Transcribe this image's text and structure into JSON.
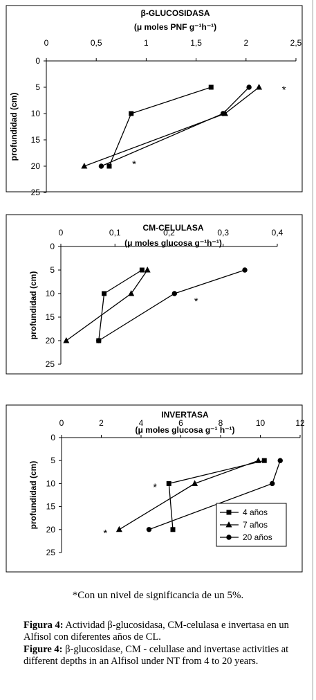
{
  "chart_data": [
    {
      "type": "line",
      "title": "β-GLUCOSIDASA",
      "subtitle": "(μ moles PNF g⁻¹h⁻¹)",
      "ylabel": "profundidad (cm)",
      "xlim": [
        0,
        2.5
      ],
      "ylim": [
        0,
        25
      ],
      "x_ticks": [
        "0",
        "0,5",
        "1",
        "1,5",
        "2",
        "2,5"
      ],
      "y_ticks": [
        "0",
        "5",
        "10",
        "15",
        "20",
        "25"
      ],
      "x_axis_position": "top",
      "y_inverted": true,
      "grid": false,
      "series": [
        {
          "name": "4 años",
          "marker": "square",
          "x": [
            1.65,
            0.85,
            0.63
          ],
          "y": [
            5,
            10,
            20
          ]
        },
        {
          "name": "7 años",
          "marker": "triangle",
          "x": [
            2.13,
            1.79,
            0.38
          ],
          "y": [
            5,
            10,
            20
          ]
        },
        {
          "name": "20 años",
          "marker": "circle",
          "x": [
            2.03,
            1.77,
            0.55
          ],
          "y": [
            5,
            10,
            20
          ]
        }
      ],
      "annotations": [
        {
          "text": "*",
          "x": 2.38,
          "y": 5.3
        },
        {
          "text": "*",
          "x": 0.88,
          "y": 19.5
        }
      ]
    },
    {
      "type": "line",
      "title": "CM-CELULASA",
      "subtitle": "(μ moles glucosa g⁻¹h⁻¹)",
      "ylabel": "profundidad (cm)",
      "xlim": [
        0,
        0.4
      ],
      "ylim": [
        0,
        25
      ],
      "x_ticks": [
        "0",
        "0,1",
        "0,2",
        "0,3",
        "0,4"
      ],
      "y_ticks": [
        "0",
        "5",
        "10",
        "15",
        "20",
        "25"
      ],
      "x_axis_position": "top",
      "y_inverted": true,
      "grid": false,
      "series": [
        {
          "name": "4 años",
          "marker": "square",
          "x": [
            0.15,
            0.08,
            0.07
          ],
          "y": [
            5,
            10,
            20
          ]
        },
        {
          "name": "7 años",
          "marker": "triangle",
          "x": [
            0.16,
            0.13,
            0.01
          ],
          "y": [
            5,
            10,
            20
          ]
        },
        {
          "name": "20 años",
          "marker": "circle",
          "x": [
            0.34,
            0.21,
            0.07
          ],
          "y": [
            5,
            10,
            20
          ]
        }
      ],
      "annotations": [
        {
          "text": "*",
          "x": 0.25,
          "y": 11.5
        }
      ]
    },
    {
      "type": "line",
      "title": "INVERTASA",
      "subtitle": "(μ moles glucosa g⁻¹ h⁻¹)",
      "ylabel": "profundidad (cm)",
      "xlim": [
        0,
        12
      ],
      "ylim": [
        0,
        25
      ],
      "x_ticks": [
        "0",
        "2",
        "4",
        "6",
        "8",
        "10",
        "12"
      ],
      "y_ticks": [
        "0",
        "5",
        "10",
        "15",
        "20",
        "25"
      ],
      "x_axis_position": "top",
      "y_inverted": true,
      "grid": false,
      "legend_position": "bottom-right",
      "series": [
        {
          "name": "4 años",
          "marker": "square",
          "x": [
            10.2,
            5.4,
            5.6
          ],
          "y": [
            5,
            10,
            20
          ]
        },
        {
          "name": "7 años",
          "marker": "triangle",
          "x": [
            9.9,
            6.7,
            2.9
          ],
          "y": [
            5,
            10,
            20
          ]
        },
        {
          "name": "20 años",
          "marker": "circle",
          "x": [
            11,
            10.6,
            4.4
          ],
          "y": [
            5,
            10,
            20
          ]
        }
      ],
      "annotations": [
        {
          "text": "*",
          "x": 4.7,
          "y": 10.6
        },
        {
          "text": "*",
          "x": 2.2,
          "y": 20.6
        }
      ]
    }
  ],
  "footnote": "*Con un nivel de significancia de un 5%.",
  "caption_es": {
    "label": "Figura 4:",
    "text": " Actividad β-glucosidasa, CM-celulasa e invertasa en un Alfisol con diferentes años de CL."
  },
  "caption_en": {
    "label": "Figure 4:",
    "text": " β-glucosidase, CM - celullase and invertase activities at different depths in an Alfisol under NT from 4 to 20 years."
  }
}
